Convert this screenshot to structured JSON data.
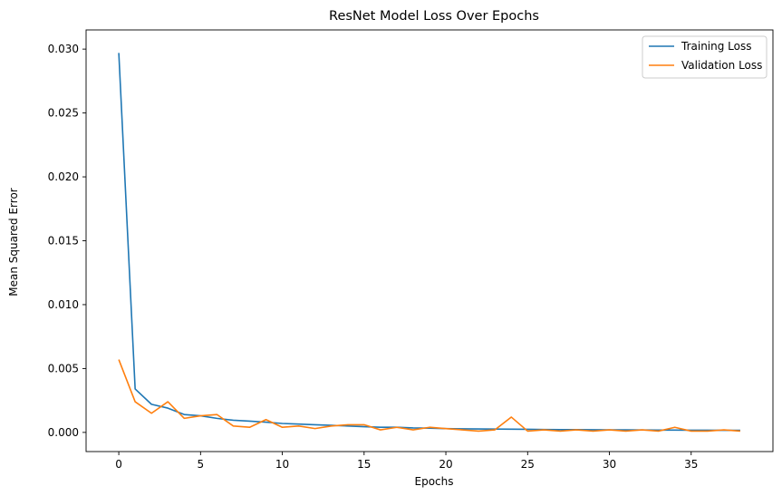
{
  "chart_data": {
    "type": "line",
    "title": "ResNet Model Loss Over Epochs",
    "xlabel": "Epochs",
    "ylabel": "Mean Squared Error",
    "xlim": [
      -2,
      40
    ],
    "ylim": [
      -0.0015,
      0.0315
    ],
    "xticks": [
      0,
      5,
      10,
      15,
      20,
      25,
      30,
      35
    ],
    "yticks": [
      0.0,
      0.005,
      0.01,
      0.015,
      0.02,
      0.025,
      0.03
    ],
    "ytick_labels": [
      "0.000",
      "0.005",
      "0.010",
      "0.015",
      "0.020",
      "0.025",
      "0.030"
    ],
    "grid": false,
    "legend_position": "top-right",
    "x": [
      0,
      1,
      2,
      3,
      4,
      5,
      6,
      7,
      8,
      9,
      10,
      11,
      12,
      13,
      14,
      15,
      16,
      17,
      18,
      19,
      20,
      21,
      22,
      23,
      24,
      25,
      26,
      27,
      28,
      29,
      30,
      31,
      32,
      33,
      34,
      35,
      36,
      37,
      38
    ],
    "series": [
      {
        "name": "Training Loss",
        "color": "#1f77b4",
        "values": [
          0.0297,
          0.0034,
          0.0022,
          0.0019,
          0.0014,
          0.0013,
          0.0011,
          0.00095,
          0.00088,
          0.0008,
          0.0007,
          0.00065,
          0.0006,
          0.00055,
          0.0005,
          0.00045,
          0.0004,
          0.0004,
          0.00035,
          0.00033,
          0.0003,
          0.00028,
          0.00027,
          0.00026,
          0.00025,
          0.00024,
          0.00023,
          0.00022,
          0.00022,
          0.00021,
          0.0002,
          0.0002,
          0.00019,
          0.00018,
          0.00018,
          0.00017,
          0.00017,
          0.00016,
          0.00016
        ]
      },
      {
        "name": "Validation Loss",
        "color": "#ff7f0e",
        "values": [
          0.0057,
          0.0024,
          0.0015,
          0.0024,
          0.0011,
          0.0013,
          0.0014,
          0.0005,
          0.0004,
          0.001,
          0.0004,
          0.0005,
          0.0003,
          0.0005,
          0.0006,
          0.0006,
          0.0002,
          0.0004,
          0.0002,
          0.0004,
          0.0003,
          0.0002,
          0.0001,
          0.0002,
          0.0012,
          0.0001,
          0.0002,
          0.0001,
          0.0002,
          0.0001,
          0.0002,
          0.0001,
          0.0002,
          0.0001,
          0.0004,
          0.0001,
          0.0001,
          0.0002,
          0.0001
        ]
      }
    ]
  }
}
